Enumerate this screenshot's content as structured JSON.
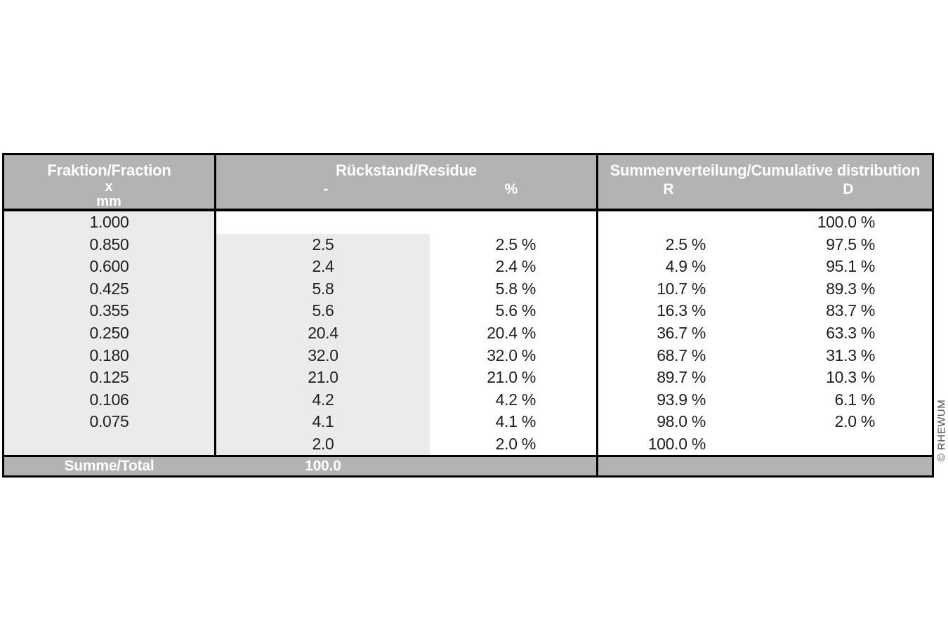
{
  "header": {
    "col1": {
      "title": "Fraktion/Fraction",
      "sub_line1": "x",
      "sub_line2": "mm"
    },
    "col2": {
      "title": "Rückstand/Residue",
      "sub_left": "-",
      "sub_right": "%"
    },
    "col3": {
      "title": "Summenverteilung/Cumulative distribution",
      "sub_left": "R",
      "sub_right": "D"
    }
  },
  "rows": [
    {
      "fraction": "1.000",
      "residue": "",
      "residue_pct": "",
      "r": "",
      "d": "100.0 %"
    },
    {
      "fraction": "0.850",
      "residue": "2.5",
      "residue_pct": "2.5 %",
      "r": "2.5 %",
      "d": "97.5 %"
    },
    {
      "fraction": "0.600",
      "residue": "2.4",
      "residue_pct": "2.4 %",
      "r": "4.9 %",
      "d": "95.1 %"
    },
    {
      "fraction": "0.425",
      "residue": "5.8",
      "residue_pct": "5.8 %",
      "r": "10.7 %",
      "d": "89.3 %"
    },
    {
      "fraction": "0.355",
      "residue": "5.6",
      "residue_pct": "5.6 %",
      "r": "16.3 %",
      "d": "83.7 %"
    },
    {
      "fraction": "0.250",
      "residue": "20.4",
      "residue_pct": "20.4 %",
      "r": "36.7 %",
      "d": "63.3 %"
    },
    {
      "fraction": "0.180",
      "residue": "32.0",
      "residue_pct": "32.0 %",
      "r": "68.7 %",
      "d": "31.3 %"
    },
    {
      "fraction": "0.125",
      "residue": "21.0",
      "residue_pct": "21.0 %",
      "r": "89.7 %",
      "d": "10.3 %"
    },
    {
      "fraction": "0.106",
      "residue": "4.2",
      "residue_pct": "4.2 %",
      "r": "93.9 %",
      "d": "6.1 %"
    },
    {
      "fraction": "0.075",
      "residue": "4.1",
      "residue_pct": "4.1 %",
      "r": "98.0 %",
      "d": "2.0 %"
    },
    {
      "fraction": "",
      "residue": "2.0",
      "residue_pct": "2.0 %",
      "r": "100.0 %",
      "d": ""
    }
  ],
  "footer": {
    "label": "Summe/Total",
    "total": "100.0"
  },
  "watermark": "© RHEWUM",
  "colors": {
    "header_bg": "#b3b3b3",
    "footer_bg": "#b3b3b3",
    "shaded_column_bg": "#ebebeb",
    "border": "#000000",
    "header_text": "#ffffff",
    "body_text": "#1f1f1f",
    "watermark_text": "#4d4d4d"
  }
}
